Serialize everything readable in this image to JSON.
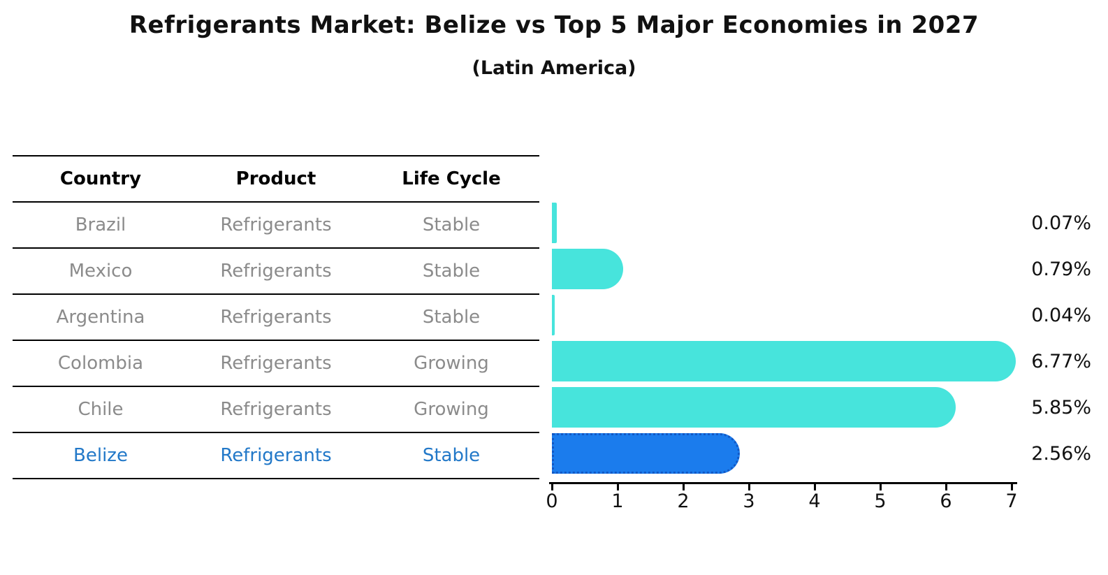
{
  "header": {
    "title": "Refrigerants Market: Belize vs Top 5 Major Economies in 2027",
    "subtitle": "(Latin America)"
  },
  "table": {
    "columns": [
      "Country",
      "Product",
      "Life Cycle"
    ],
    "rows": [
      {
        "country": "Brazil",
        "product": "Refrigerants",
        "life_cycle": "Stable",
        "highlighted": false
      },
      {
        "country": "Mexico",
        "product": "Refrigerants",
        "life_cycle": "Stable",
        "highlighted": false
      },
      {
        "country": "Argentina",
        "product": "Refrigerants",
        "life_cycle": "Stable",
        "highlighted": false
      },
      {
        "country": "Colombia",
        "product": "Refrigerants",
        "life_cycle": "Growing",
        "highlighted": false
      },
      {
        "country": "Chile",
        "product": "Refrigerants",
        "life_cycle": "Growing",
        "highlighted": false
      },
      {
        "country": "Belize",
        "product": "Refrigerants",
        "life_cycle": "Stable",
        "highlighted": true
      }
    ]
  },
  "chart_data": {
    "type": "bar",
    "orientation": "horizontal",
    "title": "Refrigerants Market: Belize vs Top 5 Major Economies in 2027",
    "subtitle": "(Latin America)",
    "categories": [
      "Brazil",
      "Mexico",
      "Argentina",
      "Colombia",
      "Chile",
      "Belize"
    ],
    "values": [
      0.07,
      0.79,
      0.04,
      6.77,
      5.85,
      2.56
    ],
    "value_labels": [
      "0.07%",
      "0.79%",
      "0.04%",
      "6.77%",
      "5.85%",
      "2.56%"
    ],
    "xlim": [
      0,
      7
    ],
    "x_ticks": [
      "0",
      "1",
      "2",
      "3",
      "4",
      "5",
      "6",
      "7"
    ],
    "grid": false,
    "legend": false,
    "bar_color": "#47e4dc",
    "highlight_index": 5,
    "highlight_color": "#1b7ced",
    "highlight_border_color": "#1258c4",
    "highlight_text_color": "#2278c8"
  }
}
